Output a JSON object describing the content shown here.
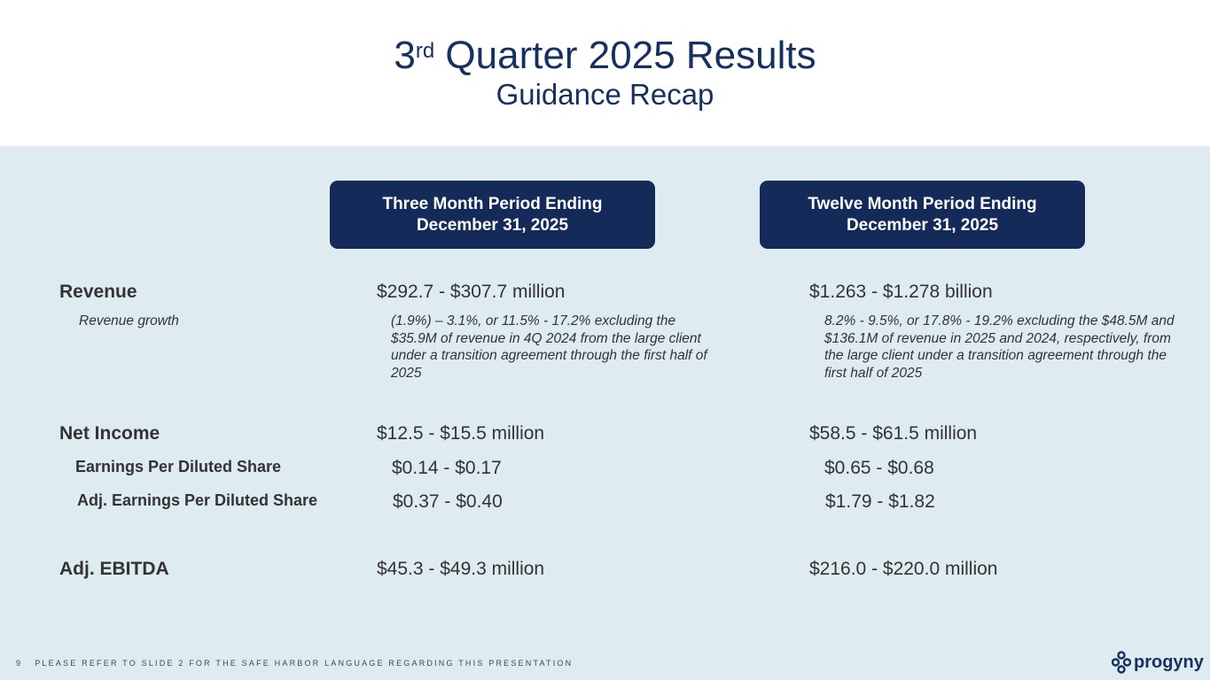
{
  "header": {
    "title_num": "3",
    "title_sup": "rd",
    "title_rest": " Quarter 2025 Results",
    "subtitle": "Guidance Recap"
  },
  "columns": [
    {
      "line1": "Three Month Period Ending",
      "line2": "December 31, 2025"
    },
    {
      "line1": "Twelve Month Period Ending",
      "line2": "December 31, 2025"
    }
  ],
  "rows": {
    "revenue": {
      "label": "Revenue",
      "q": "$292.7 - $307.7 million",
      "y": "$1.263 - $1.278 billion"
    },
    "revenue_growth": {
      "label": "Revenue growth",
      "q": "(1.9%) – 3.1%, or 11.5% - 17.2% excluding the $35.9M of revenue in 4Q 2024 from the large client under a transition agreement through the first half of 2025",
      "y": "8.2% - 9.5%, or 17.8% - 19.2% excluding the $48.5M and $136.1M of revenue in 2025 and 2024, respectively, from the large client under a transition agreement through the first half of 2025"
    },
    "net_income": {
      "label": "Net Income",
      "q": "$12.5 - $15.5 million",
      "y": "$58.5 - $61.5 million"
    },
    "eps": {
      "label": "Earnings Per Diluted Share",
      "q": "$0.14 - $0.17",
      "y": "$0.65 - $0.68"
    },
    "adj_eps": {
      "label": "Adj. Earnings Per Diluted Share",
      "q": "$0.37 - $0.40",
      "y": "$1.79 - $1.82"
    },
    "adj_ebitda": {
      "label": "Adj. EBITDA",
      "q": "$45.3 - $49.3 million",
      "y": "$216.0 - $220.0 million"
    }
  },
  "footer": {
    "page": "9",
    "disclaimer": "PLEASE REFER TO SLIDE 2 FOR THE SAFE HARBOR LANGUAGE REGARDING THIS PRESENTATION"
  },
  "logo": {
    "text": "progyny"
  }
}
